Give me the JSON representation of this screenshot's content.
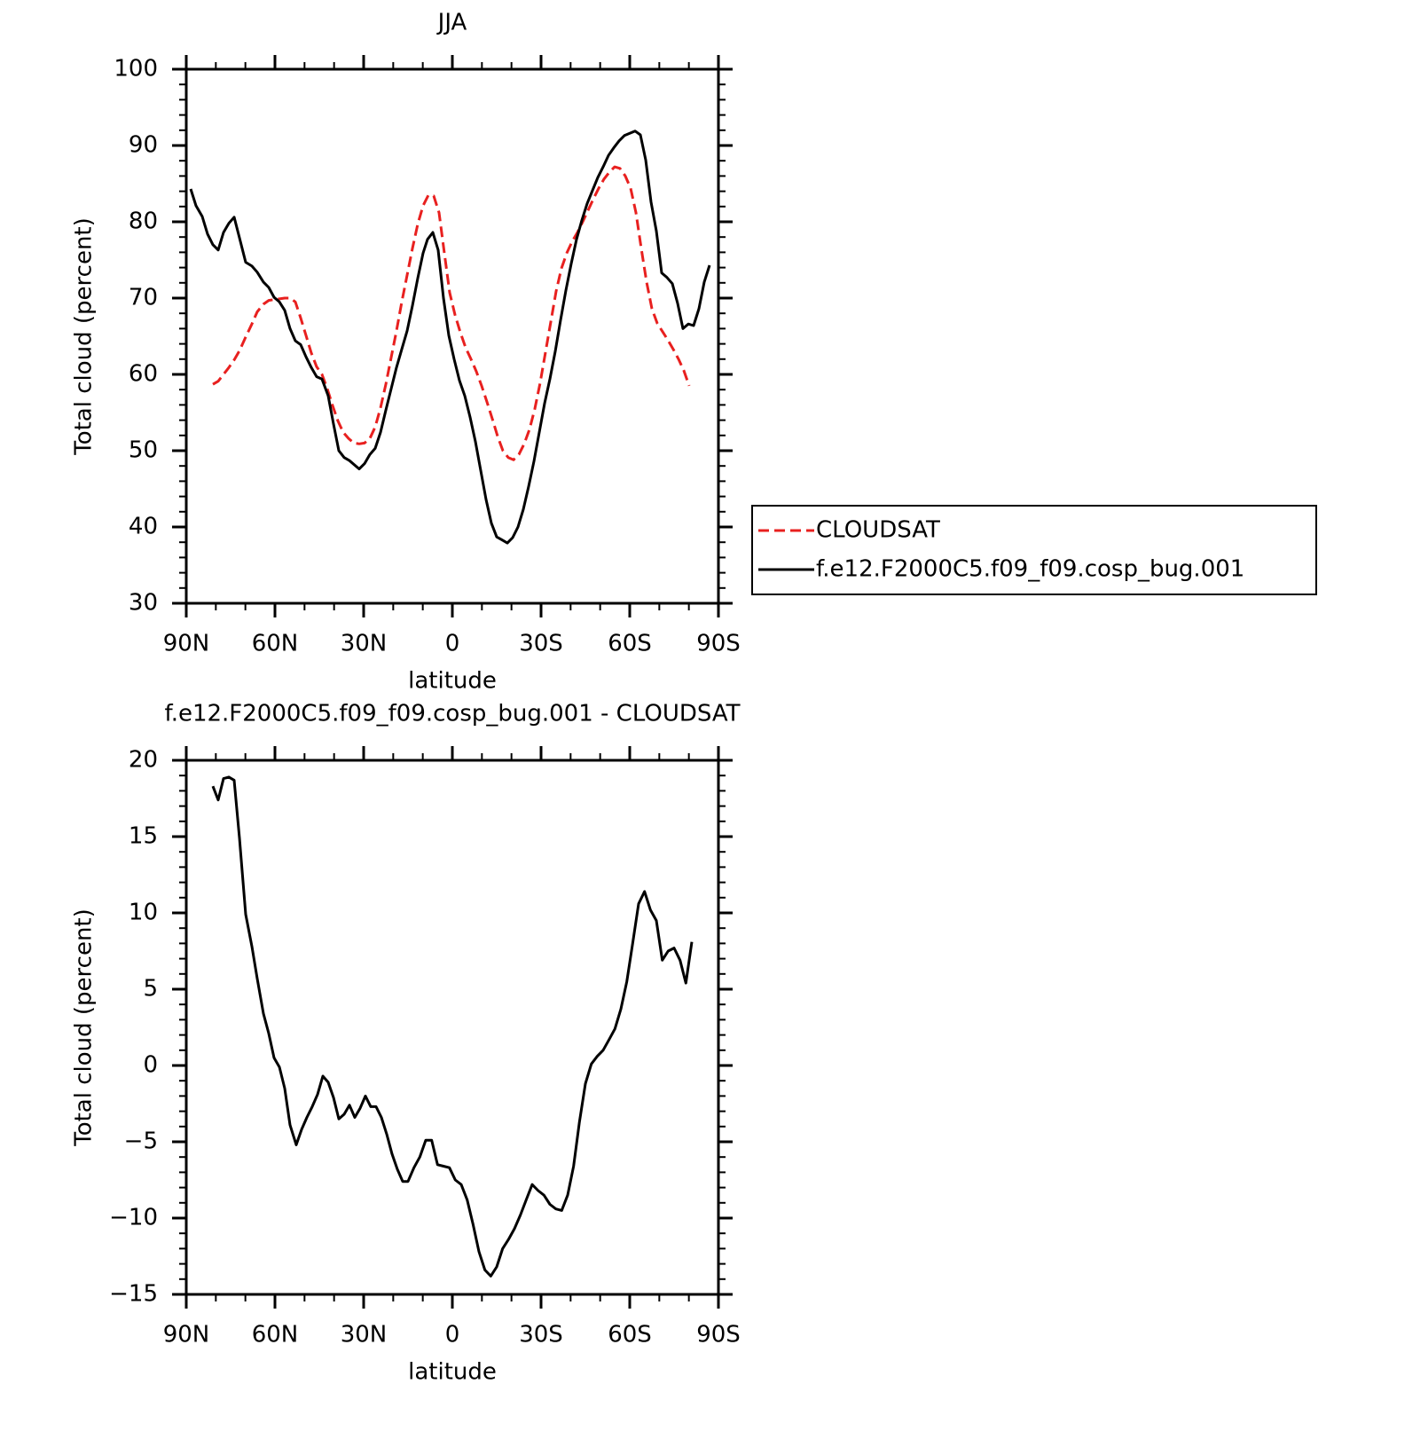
{
  "chart_data": [
    {
      "type": "line",
      "title": "JJA",
      "xlabel": "latitude",
      "ylabel": "Total cloud (percent)",
      "xlim": [
        90,
        -90
      ],
      "xticks": [
        {
          "value": 90,
          "label": "90N"
        },
        {
          "value": 60,
          "label": "60N"
        },
        {
          "value": 30,
          "label": "30N"
        },
        0,
        {
          "value": -30,
          "label": "30S"
        },
        {
          "value": -60,
          "label": "60S"
        },
        {
          "value": -90,
          "label": "90S"
        }
      ],
      "xminorticks": [
        80,
        70,
        50,
        40,
        20,
        10,
        -10,
        -20,
        -40,
        -50,
        -70,
        -80
      ],
      "ylim": [
        30,
        100
      ],
      "yticks": [
        30,
        40,
        50,
        60,
        70,
        80,
        90,
        100
      ],
      "yminorticks": [
        32,
        34,
        36,
        38,
        42,
        44,
        46,
        48,
        52,
        54,
        56,
        58,
        62,
        64,
        66,
        68,
        72,
        74,
        76,
        78,
        82,
        84,
        86,
        88,
        92,
        94,
        96,
        98
      ],
      "legend": "right",
      "series": [
        {
          "name": "CLOUDSAT",
          "color": "#e8201f",
          "linestyle": "dashed",
          "x": [
            81,
            79.2,
            77.4,
            75.6,
            73.8,
            72,
            69.9,
            67.8,
            66,
            63.9,
            62.1,
            60.3,
            58.5,
            56.7,
            54.9,
            53.1,
            51.3,
            49.5,
            47.7,
            45.9,
            44.1,
            42.3,
            40.5,
            38.7,
            36.9,
            35.1,
            33.3,
            31.5,
            29.7,
            27.9,
            26.1,
            24.3,
            22.5,
            20.7,
            18.9,
            17.1,
            15.3,
            13.5,
            11.7,
            9.9,
            8.1,
            6.3,
            4.5,
            2.7,
            0.9,
            -0.9,
            -2.7,
            -4.5,
            -6.3,
            -8.1,
            -9.9,
            -11.7,
            -13.5,
            -15.3,
            -17.1,
            -18.9,
            -20.7,
            -22.5,
            -24.3,
            -26.1,
            -27.9,
            -29.7,
            -31.5,
            -33.3,
            -35.1,
            -36.9,
            -38.7,
            -40.5,
            -42.3,
            -44.1,
            -45.9,
            -47.7,
            -49.5,
            -51.3,
            -53.1,
            -54.9,
            -56.7,
            -58.5,
            -60.3,
            -62.1,
            -63.9,
            -65.7,
            -67.5,
            -69.3,
            -71.1,
            -72.9,
            -74.7,
            -76.5,
            -78.3,
            -80.1
          ],
          "values": [
            58.7,
            59.1,
            60.0,
            60.9,
            61.9,
            63.1,
            64.9,
            66.6,
            68.2,
            69.2,
            69.7,
            69.8,
            69.9,
            70.0,
            70.0,
            69.5,
            67.4,
            65.1,
            62.8,
            61.0,
            60.0,
            58.1,
            55.9,
            53.9,
            52.4,
            51.6,
            51.0,
            50.9,
            51.0,
            51.6,
            53.1,
            55.6,
            58.7,
            62.2,
            65.7,
            69.5,
            73.0,
            76.5,
            79.7,
            82.1,
            83.5,
            83.4,
            81.2,
            75.9,
            70.7,
            67.8,
            65.5,
            63.5,
            62.0,
            60.4,
            58.5,
            56.4,
            54.2,
            51.9,
            50.0,
            49.1,
            48.8,
            49.5,
            50.9,
            52.8,
            55.5,
            58.9,
            62.9,
            66.9,
            70.9,
            73.9,
            75.9,
            77.4,
            78.6,
            80.0,
            81.5,
            83.0,
            84.4,
            85.6,
            86.5,
            87.2,
            87.0,
            86.0,
            84.4,
            81.2,
            76.5,
            72.1,
            68.6,
            66.7,
            65.6,
            64.5,
            63.3,
            62.0,
            60.5,
            58.5
          ]
        },
        {
          "name": "f.e12.F2000C5.f09_f09.cosp_bug.001",
          "color": "#000000",
          "linestyle": "solid",
          "x": [
            88.5,
            86.7,
            84.6,
            82.8,
            81,
            79.2,
            77.4,
            75.6,
            73.8,
            72,
            69.9,
            67.8,
            66,
            63.9,
            62.1,
            60.3,
            58.5,
            56.7,
            54.9,
            53.1,
            51.3,
            49.5,
            47.7,
            45.9,
            44.1,
            42,
            40.2,
            38.4,
            36.6,
            34.8,
            31.5,
            29.7,
            27.9,
            26.1,
            24.3,
            22.5,
            20.7,
            18.9,
            17.1,
            15.3,
            13.5,
            11.7,
            9.9,
            8.4,
            6.6,
            4.8,
            3,
            1.2,
            -0.6,
            -2.4,
            -4.2,
            -6,
            -7.8,
            -9.6,
            -11.4,
            -13.2,
            -15,
            -16.8,
            -18.6,
            -20.4,
            -22.2,
            -24,
            -25.8,
            -27.6,
            -29.4,
            -31.2,
            -33,
            -34.8,
            -36.6,
            -38.4,
            -40.2,
            -42,
            -43.8,
            -45.6,
            -47.4,
            -49.2,
            -51,
            -52.8,
            -54.6,
            -56.4,
            -58.2,
            -60,
            -61.8,
            -63.6,
            -65.4,
            -67.2,
            -69,
            -70.8,
            -72.6,
            -74.4,
            -76.2,
            -78,
            -79.8,
            -81.6,
            -83.4,
            -85.2,
            -87
          ],
          "values": [
            84.3,
            82.1,
            80.7,
            78.4,
            77.0,
            76.3,
            78.6,
            79.8,
            80.6,
            77.9,
            74.7,
            74.2,
            73.4,
            72.1,
            71.4,
            70.1,
            69.5,
            68.4,
            66.0,
            64.4,
            63.9,
            62.3,
            60.9,
            59.7,
            59.4,
            57.2,
            53.5,
            50.0,
            49.1,
            48.7,
            47.6,
            48.3,
            49.5,
            50.3,
            52.4,
            55.3,
            58.1,
            60.9,
            63.3,
            65.7,
            69.0,
            72.6,
            75.9,
            77.7,
            78.6,
            76.3,
            70.0,
            65.1,
            62.0,
            59.2,
            57.2,
            54.4,
            51.2,
            47.4,
            43.6,
            40.5,
            38.7,
            38.3,
            37.9,
            38.6,
            40.0,
            42.3,
            45.3,
            48.6,
            52.4,
            56.2,
            59.4,
            63.0,
            67.1,
            71.0,
            74.5,
            77.7,
            80.2,
            82.4,
            84.1,
            85.8,
            87.2,
            88.7,
            89.7,
            90.6,
            91.3,
            91.6,
            91.9,
            91.4,
            88.1,
            82.6,
            78.8,
            73.3,
            72.7,
            71.9,
            69.3,
            66.0,
            66.6,
            66.4,
            68.6,
            72.1,
            74.3
          ]
        }
      ]
    },
    {
      "type": "line",
      "title": "f.e12.F2000C5.f09_f09.cosp_bug.001 - CLOUDSAT",
      "xlabel": "latitude",
      "ylabel": "Total cloud (percent)",
      "xlim": [
        90,
        -90
      ],
      "xticks": [
        {
          "value": 90,
          "label": "90N"
        },
        {
          "value": 60,
          "label": "60N"
        },
        {
          "value": 30,
          "label": "30N"
        },
        0,
        {
          "value": -30,
          "label": "30S"
        },
        {
          "value": -60,
          "label": "60S"
        },
        {
          "value": -90,
          "label": "90S"
        }
      ],
      "xminorticks": [
        80,
        70,
        50,
        40,
        20,
        10,
        -10,
        -20,
        -40,
        -50,
        -70,
        -80
      ],
      "ylim": [
        -15,
        20
      ],
      "yticks": [
        {
          "value": -15,
          "label": "−15"
        },
        {
          "value": -10,
          "label": "−10"
        },
        {
          "value": -5,
          "label": "−5"
        },
        0,
        5,
        10,
        15,
        20
      ],
      "yminorticks": [
        -14,
        -13,
        -12,
        -11,
        -9,
        -8,
        -7,
        -6,
        -4,
        -3,
        -2,
        -1,
        1,
        2,
        3,
        4,
        6,
        7,
        8,
        9,
        11,
        12,
        13,
        14,
        16,
        17,
        18,
        19
      ],
      "series": [
        {
          "color": "#000000",
          "linestyle": "solid",
          "x": [
            81,
            79.2,
            77.4,
            75.6,
            73.8,
            72,
            69.9,
            67.8,
            66,
            63.9,
            62.1,
            60.3,
            58.5,
            56.7,
            54.9,
            52.8,
            51,
            49.2,
            47.4,
            45.6,
            43.8,
            42,
            40.2,
            38.4,
            36.6,
            34.8,
            33,
            31.2,
            29.4,
            27.6,
            25.8,
            24,
            22.2,
            20.4,
            18.6,
            16.8,
            15,
            13,
            11,
            9,
            7,
            5,
            3,
            1,
            -1,
            -3,
            -5,
            -7,
            -9,
            -11,
            -13,
            -15,
            -17,
            -19,
            -21,
            -23,
            -25,
            -27,
            -29,
            -31,
            -33,
            -35,
            -37,
            -39,
            -41,
            -43,
            -45,
            -47,
            -49,
            -51,
            -53,
            -55,
            -57,
            -59,
            -61,
            -63,
            -65,
            -67,
            -69,
            -71,
            -73,
            -75,
            -77,
            -79,
            -81
          ],
          "values": [
            18.3,
            17.4,
            18.8,
            18.9,
            18.7,
            14.9,
            9.9,
            7.8,
            5.7,
            3.4,
            2.1,
            0.5,
            -0.1,
            -1.5,
            -3.9,
            -5.2,
            -4.2,
            -3.4,
            -2.7,
            -1.9,
            -0.7,
            -1.1,
            -2.1,
            -3.5,
            -3.2,
            -2.6,
            -3.4,
            -2.8,
            -2.0,
            -2.7,
            -2.7,
            -3.4,
            -4.5,
            -5.8,
            -6.8,
            -7.6,
            -7.6,
            -6.7,
            -6.0,
            -4.9,
            -4.9,
            -6.5,
            -6.6,
            -6.7,
            -7.5,
            -7.8,
            -8.8,
            -10.4,
            -12.2,
            -13.4,
            -13.8,
            -13.2,
            -12.0,
            -11.4,
            -10.7,
            -9.8,
            -8.8,
            -7.8,
            -8.2,
            -8.5,
            -9.1,
            -9.4,
            -9.5,
            -8.5,
            -6.6,
            -3.7,
            -1.2,
            0.1,
            0.6,
            1.0,
            1.7,
            2.4,
            3.7,
            5.5,
            8.0,
            10.6,
            11.4,
            10.2,
            9.5,
            6.9,
            7.5,
            7.7,
            6.9,
            5.4,
            8.1
          ]
        }
      ]
    }
  ]
}
